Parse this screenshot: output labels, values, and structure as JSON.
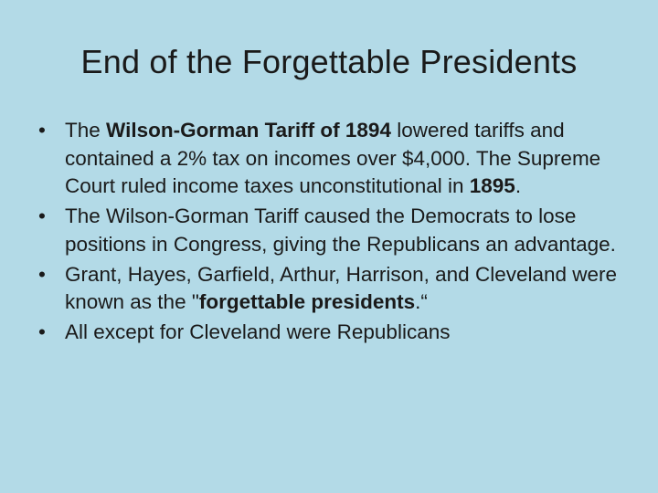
{
  "slide": {
    "title": "End of the Forgettable Presidents",
    "bullets": [
      {
        "segments": [
          {
            "text": "The ",
            "bold": false
          },
          {
            "text": "Wilson-Gorman Tariff of 1894",
            "bold": true
          },
          {
            "text": " lowered tariffs and contained a 2% tax on incomes over $4,000. The Supreme Court ruled income taxes unconstitutional in ",
            "bold": false
          },
          {
            "text": "1895",
            "bold": true
          },
          {
            "text": ".",
            "bold": false
          }
        ]
      },
      {
        "segments": [
          {
            "text": "The Wilson-Gorman Tariff caused the Democrats to lose positions in Congress, giving the Republicans an advantage.",
            "bold": false
          }
        ]
      },
      {
        "segments": [
          {
            "text": "Grant, Hayes, Garfield, Arthur, Harrison, and Cleveland were known as the \"",
            "bold": false
          },
          {
            "text": "forgettable presidents",
            "bold": true
          },
          {
            "text": ".“",
            "bold": false
          }
        ]
      },
      {
        "segments": [
          {
            "text": "All except for Cleveland were Republicans",
            "bold": false
          }
        ]
      }
    ]
  }
}
